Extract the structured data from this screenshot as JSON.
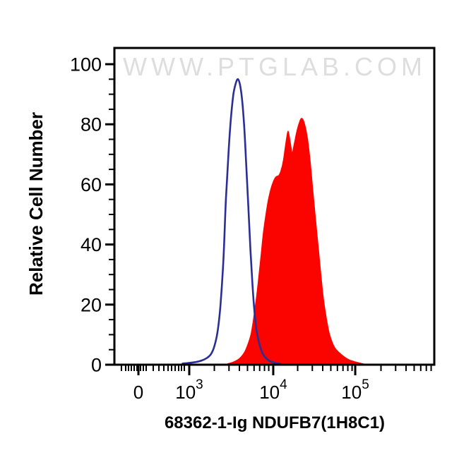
{
  "figure": {
    "watermark": "WWW.PTGLAB.COM",
    "y_axis_title": "Relative Cell Number",
    "x_axis_title": "68362-1-Ig NDUFB7(1H8C1)"
  },
  "colors": {
    "axis": "#000000",
    "watermark": "#dedede",
    "blue_open_curve": "#2b2e96",
    "red_filled_curve": "#fb0400"
  },
  "chart_data": {
    "type": "area",
    "title": "68362-1-Ig NDUFB7(1H8C1)",
    "xlabel": "68362-1-Ig NDUFB7(1H8C1)",
    "ylabel": "Relative Cell Number",
    "x_scale": "logicle",
    "grid": false,
    "legend": "none",
    "ylim": [
      0,
      100
    ],
    "y_major_ticks": [
      0,
      20,
      40,
      60,
      80,
      100
    ],
    "y_minor_ticks": [
      5,
      10,
      15,
      25,
      30,
      35,
      45,
      50,
      55,
      65,
      70,
      75,
      85,
      90,
      95
    ],
    "x_major_ticks": [
      {
        "label": "0",
        "sup": "",
        "log": 2.39
      },
      {
        "label": "10",
        "sup": "3",
        "log": 3.0
      },
      {
        "label": "10",
        "sup": "4",
        "log": 4.008
      },
      {
        "label": "10",
        "sup": "5",
        "log": 4.992
      }
    ],
    "x_minor_ticks_log": [
      2.186,
      2.237,
      2.271,
      2.305,
      2.339,
      2.373,
      2.415,
      2.449,
      2.483,
      2.568,
      2.636,
      2.695,
      2.746,
      2.788,
      2.831,
      2.873,
      2.907,
      2.941,
      3.301,
      3.477,
      3.602,
      3.699,
      3.778,
      3.845,
      3.903,
      3.954,
      4.301,
      4.477,
      4.602,
      4.699,
      4.778,
      4.845,
      4.903,
      4.954,
      5.301,
      5.477,
      5.602,
      5.699,
      5.778,
      5.845,
      5.903
    ],
    "series": [
      {
        "name": "red-filled-histogram",
        "style": "filled",
        "color": "#fb0400",
        "peak_value": 82,
        "peak_log_x": 4.35,
        "points": [
          [
            3.46,
            0.3
          ],
          [
            3.53,
            0.9
          ],
          [
            3.6,
            2.0
          ],
          [
            3.66,
            4.0
          ],
          [
            3.7,
            6.5
          ],
          [
            3.74,
            10
          ],
          [
            3.77,
            15
          ],
          [
            3.8,
            21
          ],
          [
            3.83,
            28
          ],
          [
            3.86,
            36
          ],
          [
            3.89,
            44
          ],
          [
            3.92,
            50
          ],
          [
            3.95,
            55
          ],
          [
            3.98,
            58.5
          ],
          [
            4.01,
            61
          ],
          [
            4.04,
            62.5
          ],
          [
            4.075,
            63
          ],
          [
            4.1,
            64.5
          ],
          [
            4.13,
            68
          ],
          [
            4.15,
            72
          ],
          [
            4.175,
            76.5
          ],
          [
            4.19,
            77.5
          ],
          [
            4.215,
            73.5
          ],
          [
            4.235,
            70.5
          ],
          [
            4.26,
            73.5
          ],
          [
            4.29,
            77.5
          ],
          [
            4.32,
            80.5
          ],
          [
            4.35,
            82
          ],
          [
            4.385,
            80
          ],
          [
            4.42,
            75
          ],
          [
            4.45,
            68
          ],
          [
            4.48,
            59
          ],
          [
            4.51,
            50
          ],
          [
            4.545,
            40
          ],
          [
            4.58,
            30
          ],
          [
            4.61,
            22
          ],
          [
            4.645,
            15.5
          ],
          [
            4.68,
            10.5
          ],
          [
            4.715,
            7.5
          ],
          [
            4.75,
            5.5
          ],
          [
            4.8,
            4.0
          ],
          [
            4.86,
            2.6
          ],
          [
            4.92,
            1.6
          ],
          [
            5.0,
            0.9
          ],
          [
            5.07,
            0.4
          ],
          [
            5.13,
            0
          ]
        ]
      },
      {
        "name": "blue-open-histogram",
        "style": "open",
        "color": "#2b2e96",
        "peak_value": 95,
        "peak_log_x": 3.585,
        "points": [
          [
            2.92,
            0.4
          ],
          [
            3.0,
            0.6
          ],
          [
            3.08,
            0.9
          ],
          [
            3.15,
            1.4
          ],
          [
            3.21,
            2.2
          ],
          [
            3.26,
            3.5
          ],
          [
            3.3,
            6
          ],
          [
            3.34,
            11
          ],
          [
            3.375,
            20
          ],
          [
            3.41,
            35
          ],
          [
            3.44,
            55
          ],
          [
            3.47,
            70
          ],
          [
            3.5,
            82
          ],
          [
            3.53,
            90
          ],
          [
            3.56,
            93.8
          ],
          [
            3.585,
            95
          ],
          [
            3.61,
            93
          ],
          [
            3.635,
            88
          ],
          [
            3.66,
            79
          ],
          [
            3.685,
            66
          ],
          [
            3.71,
            52
          ],
          [
            3.735,
            38
          ],
          [
            3.76,
            26
          ],
          [
            3.785,
            17
          ],
          [
            3.81,
            11
          ],
          [
            3.845,
            6.5
          ],
          [
            3.88,
            3.8
          ],
          [
            3.92,
            2.2
          ],
          [
            3.97,
            1.2
          ],
          [
            4.03,
            0.6
          ],
          [
            4.1,
            0.2
          ],
          [
            4.17,
            0
          ]
        ]
      }
    ]
  }
}
